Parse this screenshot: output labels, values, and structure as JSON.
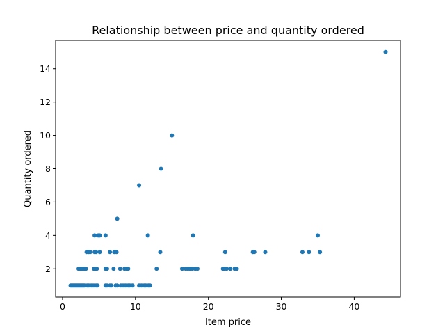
{
  "chart_data": {
    "type": "scatter",
    "title": "Relationship between price and quantity ordered",
    "xlabel": "Item price",
    "ylabel": "Quantity ordered",
    "xlim": [
      -0.95,
      46.35
    ],
    "ylim": [
      0.3,
      15.7
    ],
    "xticks": [
      0,
      10,
      20,
      30,
      40
    ],
    "yticks": [
      2,
      4,
      6,
      8,
      10,
      12,
      14
    ],
    "grid": false,
    "point_color": "#1f77b4",
    "series": [
      {
        "points": [
          [
            1.1,
            1
          ],
          [
            1.2,
            1
          ],
          [
            1.3,
            1
          ],
          [
            1.4,
            1
          ],
          [
            1.5,
            1
          ],
          [
            1.6,
            1
          ],
          [
            1.7,
            1
          ],
          [
            1.8,
            1
          ],
          [
            1.9,
            1
          ],
          [
            2.0,
            1
          ],
          [
            2.1,
            1
          ],
          [
            2.2,
            1
          ],
          [
            2.3,
            1
          ],
          [
            2.4,
            1
          ],
          [
            2.5,
            1
          ],
          [
            2.6,
            1
          ],
          [
            2.7,
            1
          ],
          [
            2.8,
            1
          ],
          [
            2.9,
            1
          ],
          [
            3.0,
            1
          ],
          [
            3.2,
            1
          ],
          [
            3.4,
            1
          ],
          [
            3.6,
            1
          ],
          [
            3.8,
            1
          ],
          [
            4.0,
            1
          ],
          [
            4.2,
            1
          ],
          [
            4.4,
            1
          ],
          [
            4.6,
            1
          ],
          [
            4.8,
            1
          ],
          [
            5.9,
            1
          ],
          [
            6.1,
            1
          ],
          [
            6.5,
            1
          ],
          [
            6.7,
            1
          ],
          [
            7.3,
            1
          ],
          [
            7.5,
            1
          ],
          [
            8.0,
            1
          ],
          [
            8.2,
            1
          ],
          [
            8.4,
            1
          ],
          [
            8.6,
            1
          ],
          [
            8.8,
            1
          ],
          [
            9.0,
            1
          ],
          [
            9.2,
            1
          ],
          [
            9.4,
            1
          ],
          [
            9.6,
            1
          ],
          [
            10.5,
            1
          ],
          [
            10.8,
            1
          ],
          [
            11.0,
            1
          ],
          [
            11.2,
            1
          ],
          [
            11.4,
            1
          ],
          [
            11.6,
            1
          ],
          [
            11.8,
            1
          ],
          [
            12.0,
            1
          ],
          [
            2.2,
            2
          ],
          [
            2.4,
            2
          ],
          [
            2.6,
            2
          ],
          [
            2.8,
            2
          ],
          [
            3.0,
            2
          ],
          [
            3.2,
            2
          ],
          [
            4.3,
            2
          ],
          [
            4.5,
            2
          ],
          [
            4.7,
            2
          ],
          [
            5.9,
            2
          ],
          [
            6.1,
            2
          ],
          [
            7.0,
            2
          ],
          [
            7.9,
            2
          ],
          [
            8.5,
            2
          ],
          [
            8.8,
            2
          ],
          [
            9.0,
            2
          ],
          [
            12.9,
            2
          ],
          [
            16.4,
            2
          ],
          [
            16.9,
            2
          ],
          [
            17.2,
            2
          ],
          [
            17.5,
            2
          ],
          [
            17.8,
            2
          ],
          [
            18.2,
            2
          ],
          [
            18.5,
            2
          ],
          [
            22.0,
            2
          ],
          [
            22.2,
            2
          ],
          [
            22.5,
            2
          ],
          [
            23.0,
            2
          ],
          [
            23.6,
            2
          ],
          [
            23.9,
            2
          ],
          [
            3.3,
            3
          ],
          [
            3.6,
            3
          ],
          [
            3.8,
            3
          ],
          [
            4.4,
            3
          ],
          [
            4.6,
            3
          ],
          [
            5.1,
            3
          ],
          [
            6.5,
            3
          ],
          [
            7.1,
            3
          ],
          [
            7.4,
            3
          ],
          [
            13.4,
            3
          ],
          [
            22.3,
            3
          ],
          [
            26.1,
            3
          ],
          [
            26.3,
            3
          ],
          [
            27.8,
            3
          ],
          [
            32.9,
            3
          ],
          [
            33.8,
            3
          ],
          [
            35.3,
            3
          ],
          [
            4.4,
            4
          ],
          [
            4.9,
            4
          ],
          [
            5.1,
            4
          ],
          [
            5.9,
            4
          ],
          [
            11.7,
            4
          ],
          [
            17.9,
            4
          ],
          [
            35.0,
            4
          ],
          [
            7.5,
            5
          ],
          [
            10.5,
            7
          ],
          [
            13.5,
            8
          ],
          [
            15.0,
            10
          ],
          [
            44.3,
            15
          ]
        ]
      }
    ]
  }
}
